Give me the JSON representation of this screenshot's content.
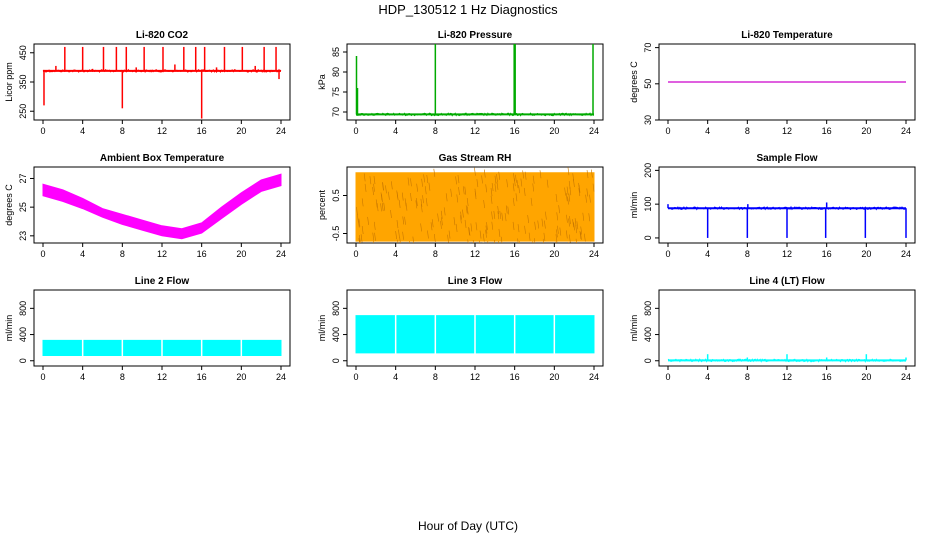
{
  "page": {
    "title": "HDP_130512  1 Hz Diagnostics",
    "xlabel": "Hour of Day (UTC)"
  },
  "chart_data": [
    {
      "type": "line",
      "title": "Li-820 CO2",
      "ylabel": "Licor ppm",
      "xlim": [
        0,
        24
      ],
      "xticks": [
        0,
        4,
        8,
        12,
        16,
        20,
        24
      ],
      "ylim": [
        220,
        480
      ],
      "yticks": [
        250,
        350,
        450
      ],
      "color": "#ff0000",
      "pattern": "baseline_spikes",
      "baseline": 388,
      "spikes": [
        [
          0.1,
          270
        ],
        [
          1.3,
          405
        ],
        [
          2.2,
          470
        ],
        [
          4.0,
          470
        ],
        [
          5.0,
          395
        ],
        [
          6.1,
          470
        ],
        [
          7.4,
          470
        ],
        [
          8.0,
          260
        ],
        [
          8.4,
          470
        ],
        [
          9.4,
          400
        ],
        [
          10.2,
          470
        ],
        [
          12.1,
          470
        ],
        [
          13.3,
          410
        ],
        [
          14.2,
          470
        ],
        [
          15.4,
          470
        ],
        [
          16.0,
          225
        ],
        [
          16.3,
          470
        ],
        [
          17.5,
          400
        ],
        [
          18.3,
          470
        ],
        [
          20.1,
          470
        ],
        [
          21.4,
          405
        ],
        [
          22.3,
          470
        ],
        [
          23.5,
          470
        ],
        [
          23.8,
          360
        ]
      ]
    },
    {
      "type": "line",
      "title": "Li-820 Pressure",
      "ylabel": "kPa",
      "xlim": [
        0,
        24
      ],
      "xticks": [
        0,
        4,
        8,
        12,
        16,
        20,
        24
      ],
      "ylim": [
        68,
        87
      ],
      "yticks": [
        70,
        75,
        80,
        85
      ],
      "color": "#00aa00",
      "pattern": "baseline_spikes",
      "baseline": 69.4,
      "spikes": [
        [
          0.05,
          84
        ],
        [
          0.15,
          76
        ],
        [
          8.0,
          87
        ],
        [
          15.95,
          87
        ],
        [
          16.05,
          87
        ],
        [
          23.9,
          87
        ]
      ]
    },
    {
      "type": "line",
      "title": "Li-820 Temperature",
      "ylabel": "degrees C",
      "xlim": [
        0,
        24
      ],
      "xticks": [
        0,
        4,
        8,
        12,
        16,
        20,
        24
      ],
      "ylim": [
        30,
        72
      ],
      "yticks": [
        30,
        50,
        70
      ],
      "color": "#cc00cc",
      "x": [
        0,
        24
      ],
      "y": [
        51,
        51
      ]
    },
    {
      "type": "area",
      "title": "Ambient Box Temperature",
      "ylabel": "degrees C",
      "xlim": [
        0,
        24
      ],
      "xticks": [
        0,
        4,
        8,
        12,
        16,
        20,
        24
      ],
      "ylim": [
        22.5,
        27.8
      ],
      "yticks": [
        23,
        25,
        27
      ],
      "color": "#ff00ff",
      "x": [
        0,
        2,
        4,
        6,
        8,
        10,
        12,
        14,
        16,
        18,
        20,
        22,
        24
      ],
      "y_low": [
        25.8,
        25.4,
        24.9,
        24.3,
        23.8,
        23.4,
        23.0,
        22.8,
        23.2,
        24.2,
        25.2,
        26.1,
        26.5
      ],
      "y_high": [
        26.6,
        26.2,
        25.6,
        24.9,
        24.5,
        24.1,
        23.7,
        23.5,
        23.9,
        25.0,
        26.0,
        26.9,
        27.3
      ]
    },
    {
      "type": "area",
      "title": "Gas Stream RH",
      "ylabel": "percent",
      "xlim": [
        0,
        24
      ],
      "xticks": [
        0,
        4,
        8,
        12,
        16,
        20,
        24
      ],
      "ylim": [
        -0.75,
        1.25
      ],
      "yticks": [
        -0.5,
        0.5
      ],
      "color": "#ffa500",
      "x": [
        0,
        24
      ],
      "y_low": [
        -0.7,
        -0.7
      ],
      "y_high": [
        1.1,
        1.1
      ]
    },
    {
      "type": "line",
      "title": "Sample Flow",
      "ylabel": "ml/min",
      "xlim": [
        0,
        24
      ],
      "xticks": [
        0,
        4,
        8,
        12,
        16,
        20,
        24
      ],
      "ylim": [
        -15,
        210
      ],
      "yticks": [
        0,
        100,
        200
      ],
      "color": "#0000ff",
      "pattern": "baseline_spikes",
      "baseline": 88,
      "spikes": [
        [
          0.0,
          100
        ],
        [
          4.0,
          0
        ],
        [
          8.0,
          0
        ],
        [
          8.05,
          100
        ],
        [
          12.0,
          0
        ],
        [
          15.9,
          0
        ],
        [
          16.0,
          105
        ],
        [
          19.9,
          0
        ],
        [
          24.0,
          0
        ]
      ]
    },
    {
      "type": "area",
      "title": "Line 2 Flow",
      "ylabel": "ml/min",
      "xlim": [
        0,
        24
      ],
      "xticks": [
        0,
        4,
        8,
        12,
        16,
        20,
        24
      ],
      "ylim": [
        -80,
        1080
      ],
      "yticks": [
        0,
        400,
        800
      ],
      "color": "#00ffff",
      "x": [
        0,
        24
      ],
      "y_low": [
        80,
        80
      ],
      "y_high": [
        310,
        310
      ],
      "gaps": [
        4,
        8,
        12,
        16,
        20
      ]
    },
    {
      "type": "area",
      "title": "Line 3 Flow",
      "ylabel": "ml/min",
      "xlim": [
        0,
        24
      ],
      "xticks": [
        0,
        4,
        8,
        12,
        16,
        20,
        24
      ],
      "ylim": [
        -80,
        1080
      ],
      "yticks": [
        0,
        400,
        800
      ],
      "color": "#00ffff",
      "x": [
        0,
        24
      ],
      "y_low": [
        120,
        120
      ],
      "y_high": [
        690,
        690
      ],
      "gaps": [
        4,
        8,
        12,
        16,
        20
      ]
    },
    {
      "type": "line",
      "title": "Line 4 (LT) Flow",
      "ylabel": "ml/min",
      "xlim": [
        0,
        24
      ],
      "xticks": [
        0,
        4,
        8,
        12,
        16,
        20,
        24
      ],
      "ylim": [
        -80,
        1080
      ],
      "yticks": [
        0,
        400,
        800
      ],
      "color": "#00ffff",
      "pattern": "baseline_spikes",
      "baseline": 5,
      "spikes": [
        [
          4.0,
          100
        ],
        [
          8.0,
          50
        ],
        [
          12.0,
          100
        ],
        [
          16.0,
          50
        ],
        [
          20.0,
          100
        ],
        [
          24.0,
          50
        ]
      ]
    }
  ]
}
